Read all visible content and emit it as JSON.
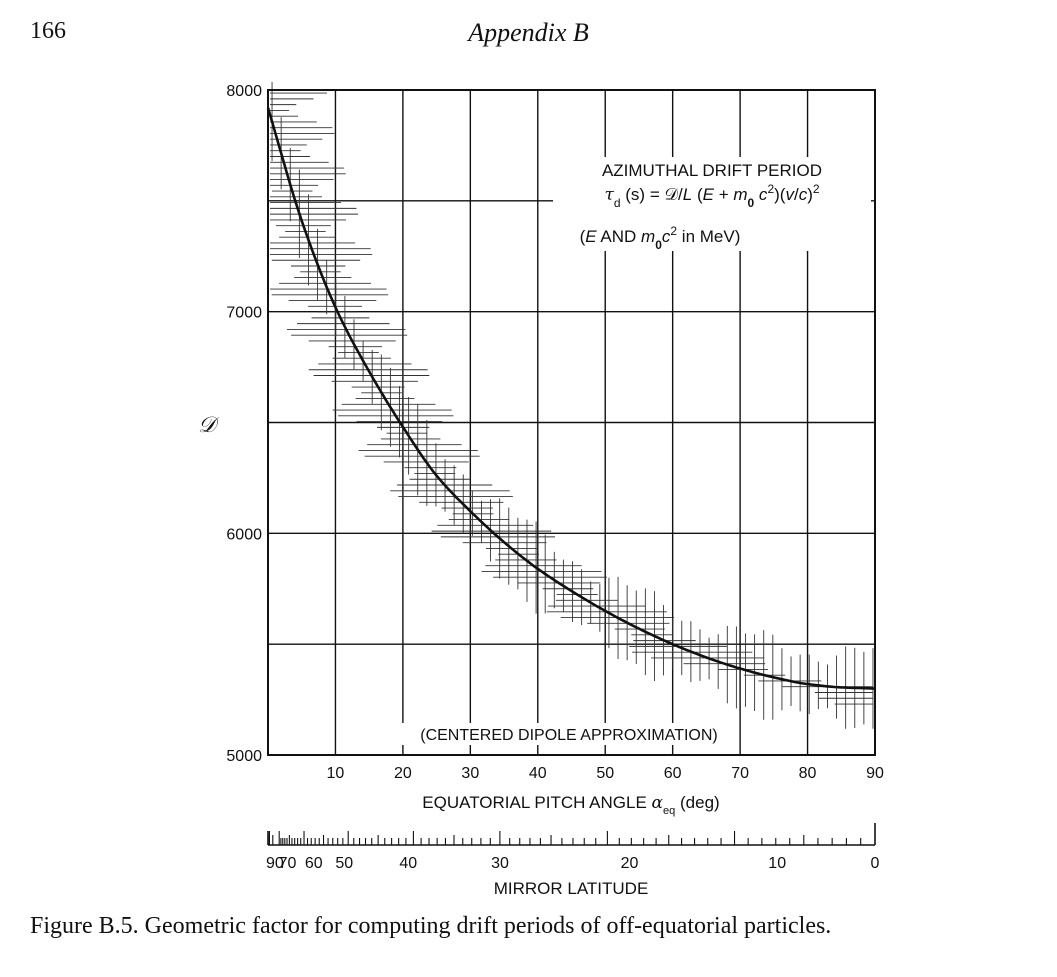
{
  "page": {
    "number": "166",
    "running_head": "Appendix B"
  },
  "chart_data": {
    "type": "line",
    "ylabel": "𝒟",
    "xlabel_prefix": "EQUATORIAL PITCH ANGLE ",
    "xlabel_symbol": "α",
    "xlabel_sub": "eq",
    "xlabel_suffix": " (deg)",
    "secondary_xlabel": "MIRROR LATITUDE",
    "xlim": [
      0,
      90
    ],
    "ylim": [
      5000,
      8000
    ],
    "grid": true,
    "x_ticks": [
      10,
      20,
      30,
      40,
      50,
      60,
      70,
      80,
      90
    ],
    "y_ticks": [
      5000,
      6000,
      7000,
      8000
    ],
    "y_gridlines": [
      5500,
      6000,
      6500,
      7000,
      7500
    ],
    "secondary_ticks": [
      {
        "label": "90",
        "pitch_angle": 0
      },
      {
        "label": "70",
        "pitch_angle": 2.3
      },
      {
        "label": "60",
        "pitch_angle": 5.3
      },
      {
        "label": "50",
        "pitch_angle": 11.3
      },
      {
        "label": "40",
        "pitch_angle": 20.8
      },
      {
        "label": "30",
        "pitch_angle": 34.4
      },
      {
        "label": "20",
        "pitch_angle": 53.6
      },
      {
        "label": "10",
        "pitch_angle": 75.5
      },
      {
        "label": "0",
        "pitch_angle": 90
      }
    ],
    "x": [
      0,
      5,
      10,
      15,
      20,
      25,
      30,
      35,
      40,
      45,
      50,
      55,
      60,
      65,
      70,
      75,
      80,
      85,
      90
    ],
    "values": [
      7920,
      7410,
      7020,
      6730,
      6480,
      6260,
      6100,
      5960,
      5840,
      5740,
      5650,
      5570,
      5500,
      5440,
      5390,
      5350,
      5320,
      5305,
      5300
    ],
    "annotation_title": "AZIMUTHAL DRIFT PERIOD",
    "formula": {
      "tau": "τ",
      "tau_sub": "d",
      "p1": " (s)  = 𝒟/",
      "L": "L",
      "p2": " (",
      "E": "E",
      "p3": " + ",
      "m": "m",
      "m_sub": "0",
      "c": " c",
      "sq1": "2",
      "p4": ")(",
      "v": "v",
      "slash": "/",
      "c2": "c",
      "p5": ")",
      "sq2": "2"
    },
    "units_note": {
      "open": "(",
      "E": "E",
      "and": " AND ",
      "m": "m",
      "m_sub": "0",
      "c": "c",
      "sq": "2",
      "rest": " in MeV)"
    },
    "approx_note": "(CENTERED DIPOLE APPROXIMATION)"
  },
  "caption": "Figure B.5. Geometric factor for computing drift periods of off-equatorial particles."
}
